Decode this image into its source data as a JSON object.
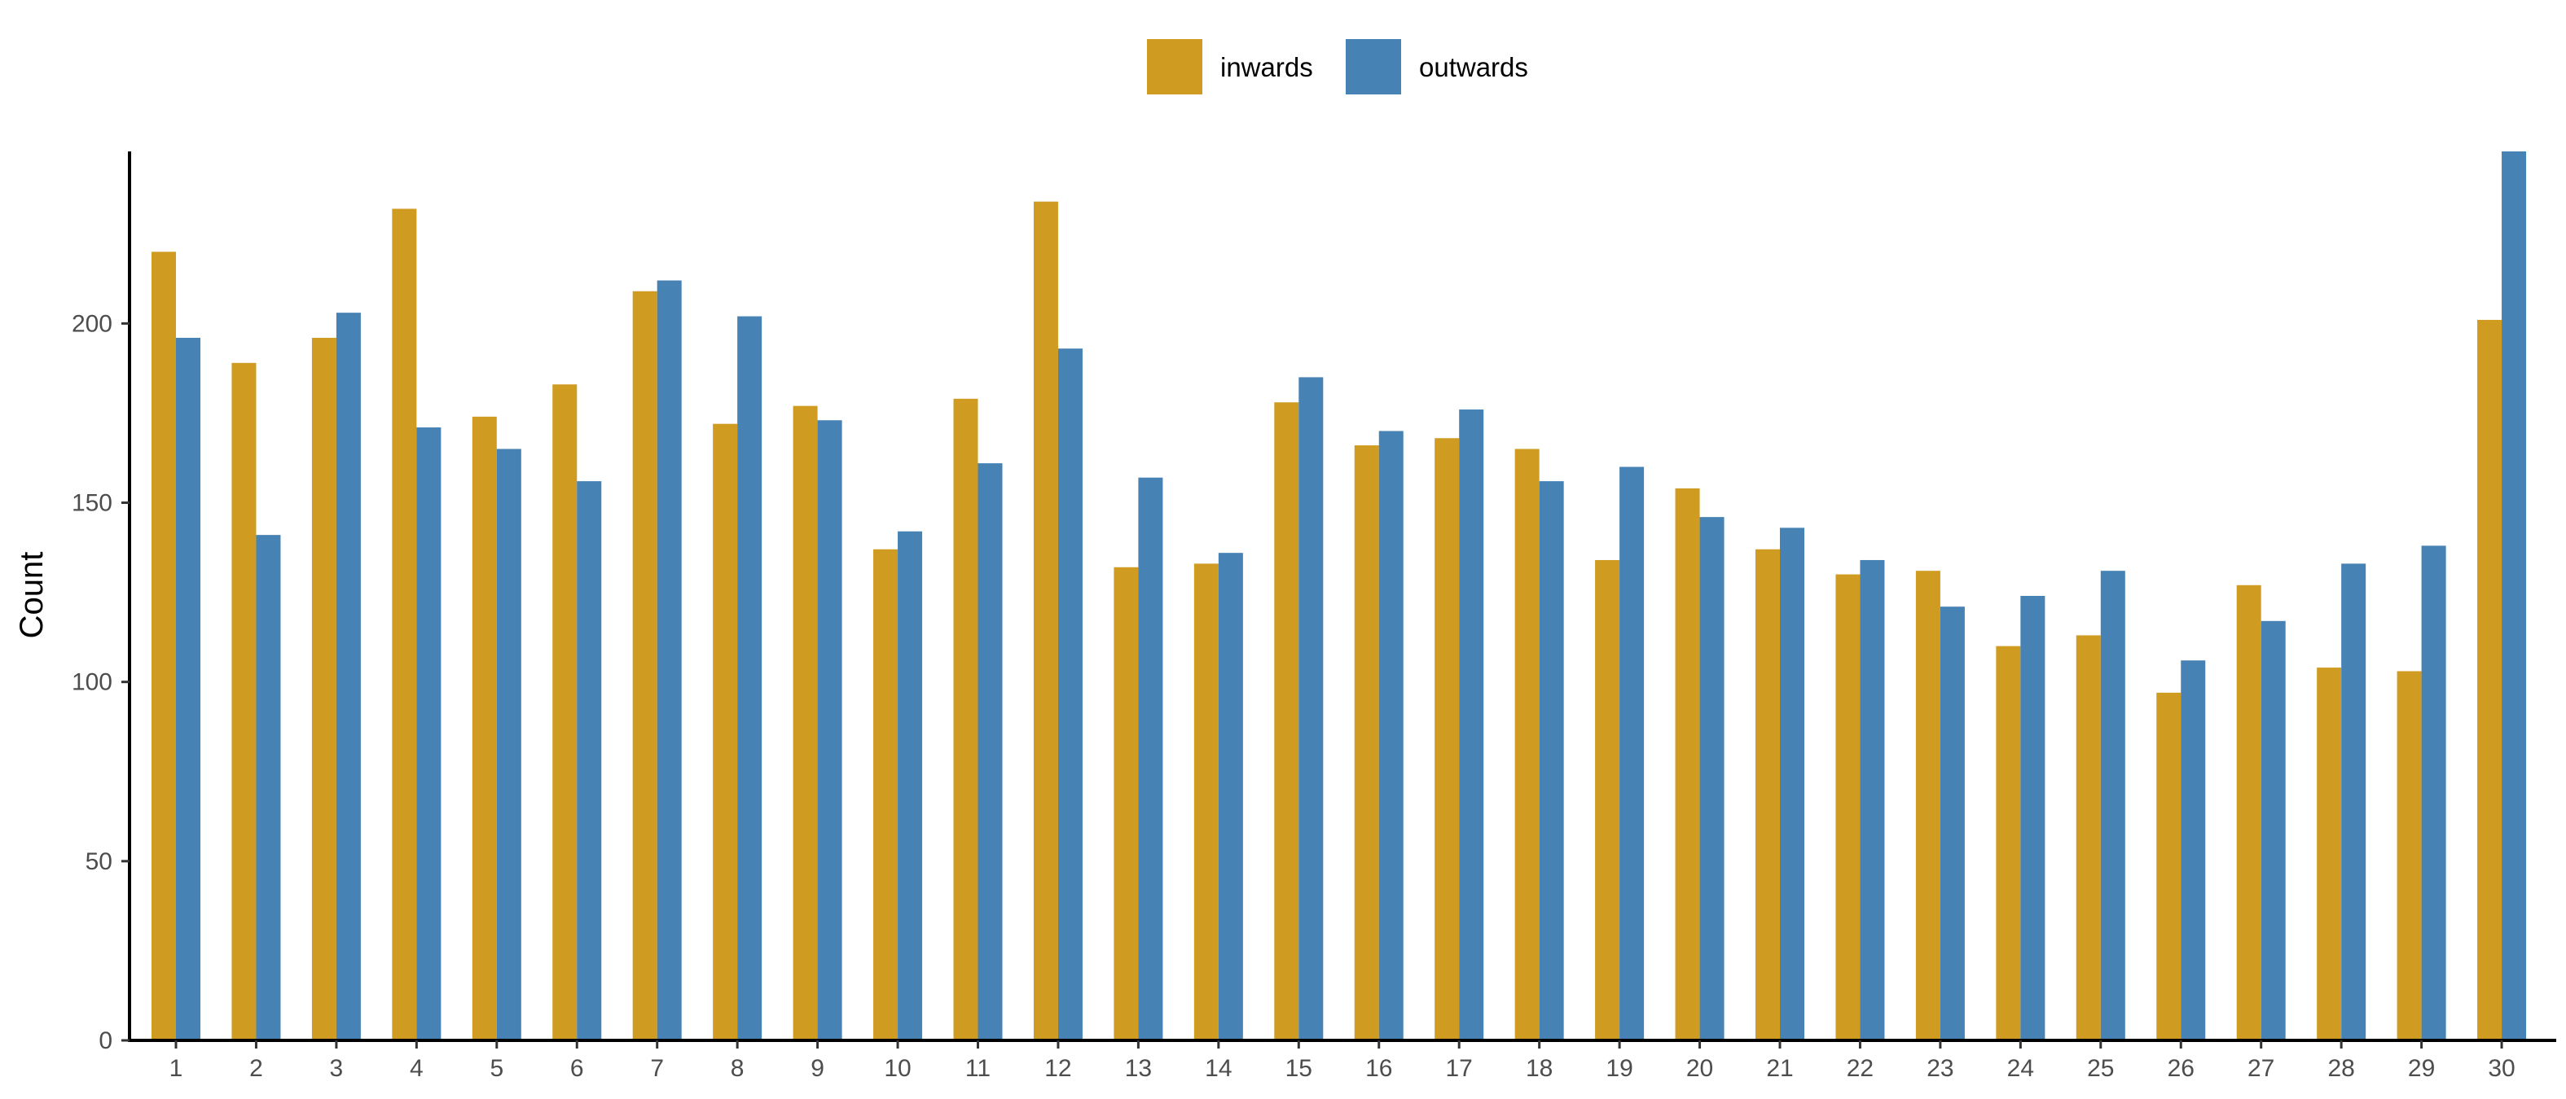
{
  "chart_data": {
    "type": "bar",
    "title": "",
    "xlabel": "",
    "ylabel": "Count",
    "categories": [
      "1",
      "2",
      "3",
      "4",
      "5",
      "6",
      "7",
      "8",
      "9",
      "10",
      "11",
      "12",
      "13",
      "14",
      "15",
      "16",
      "17",
      "18",
      "19",
      "20",
      "21",
      "22",
      "23",
      "24",
      "25",
      "26",
      "27",
      "28",
      "29",
      "30"
    ],
    "series": [
      {
        "name": "inwards",
        "color": "#CF9B21",
        "values": [
          220,
          189,
          196,
          232,
          174,
          183,
          209,
          172,
          177,
          137,
          179,
          234,
          132,
          133,
          178,
          166,
          168,
          165,
          134,
          154,
          137,
          130,
          131,
          110,
          113,
          97,
          127,
          104,
          103,
          201
        ]
      },
      {
        "name": "outwards",
        "color": "#4682B4",
        "values": [
          196,
          141,
          203,
          171,
          165,
          156,
          212,
          202,
          173,
          142,
          161,
          193,
          157,
          136,
          185,
          170,
          176,
          156,
          160,
          146,
          143,
          134,
          121,
          124,
          131,
          106,
          117,
          133,
          138,
          248
        ]
      }
    ],
    "ylim": [
      0,
      248
    ],
    "yticks": [
      0,
      50,
      100,
      150,
      200
    ],
    "grid": false,
    "legend_position": "top"
  }
}
